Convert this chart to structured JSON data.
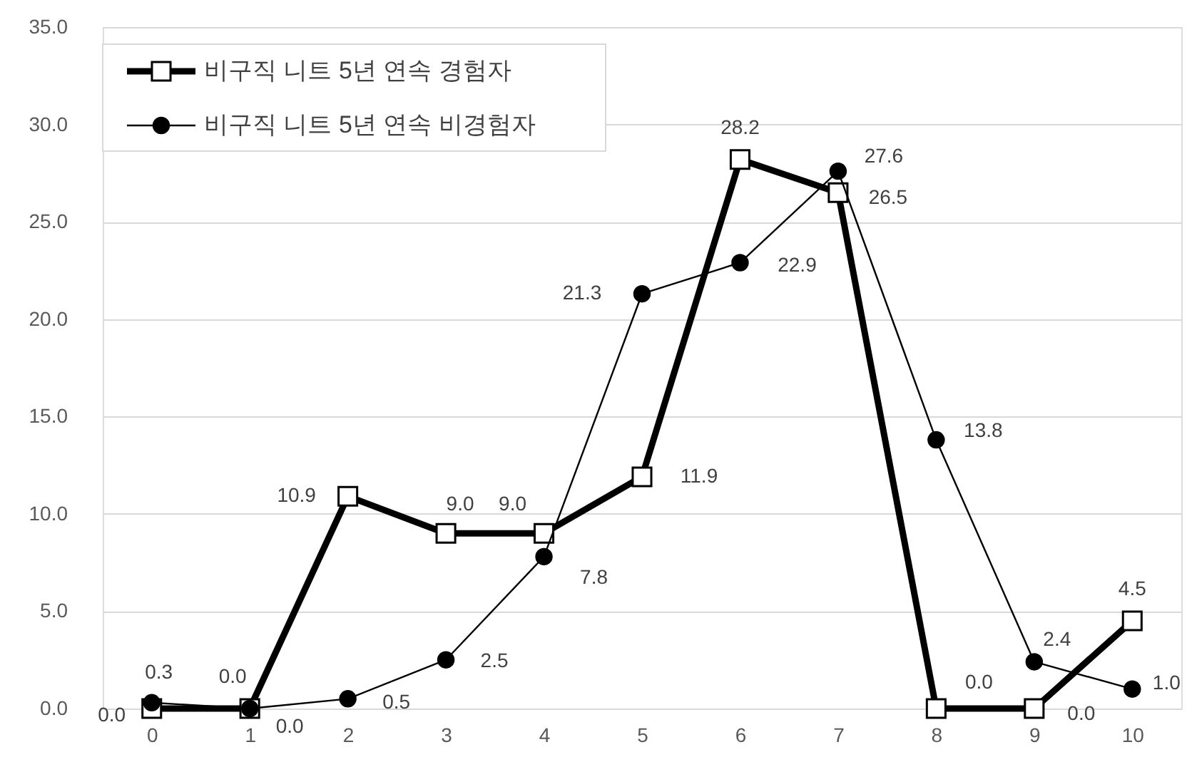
{
  "chart_data": {
    "type": "line",
    "categories": [
      "0",
      "1",
      "2",
      "3",
      "4",
      "5",
      "6",
      "7",
      "8",
      "9",
      "10"
    ],
    "ylim": [
      0,
      35
    ],
    "yticks": [
      {
        "value": 0,
        "label": "0.0"
      },
      {
        "value": 5,
        "label": "5.0"
      },
      {
        "value": 10,
        "label": "10.0"
      },
      {
        "value": 15,
        "label": "15.0"
      },
      {
        "value": 20,
        "label": "20.0"
      },
      {
        "value": 25,
        "label": "25.0"
      },
      {
        "value": 30,
        "label": "30.0"
      },
      {
        "value": 35,
        "label": "35.0"
      }
    ],
    "grid": "y",
    "legend": "top left",
    "series": [
      {
        "name": "비구직 니트 5년 연속 경험자",
        "color": "#000000",
        "marker": "square",
        "values": [
          0,
          0,
          10.9,
          9,
          9,
          11.9,
          28.2,
          26.5,
          0,
          0,
          4.5
        ],
        "value_labels": [
          "0.0",
          "0.0",
          "10.9",
          "9.0",
          "9.0",
          "11.9",
          "28.2",
          "26.5",
          "0.0",
          "0.0",
          "4.5"
        ]
      },
      {
        "name": "비구직 니트 5년 연속 비경험자",
        "color": "#000000",
        "marker": "circle",
        "values": [
          0.3,
          0,
          0.5,
          2.5,
          7.8,
          21.3,
          22.9,
          27.6,
          13.8,
          2.4,
          1
        ],
        "value_labels": [
          "0.3",
          "0.0",
          "0.5",
          "2.5",
          "7.8",
          "21.3",
          "22.9",
          "27.6",
          "13.8",
          "2.4",
          "1.0"
        ]
      }
    ]
  }
}
